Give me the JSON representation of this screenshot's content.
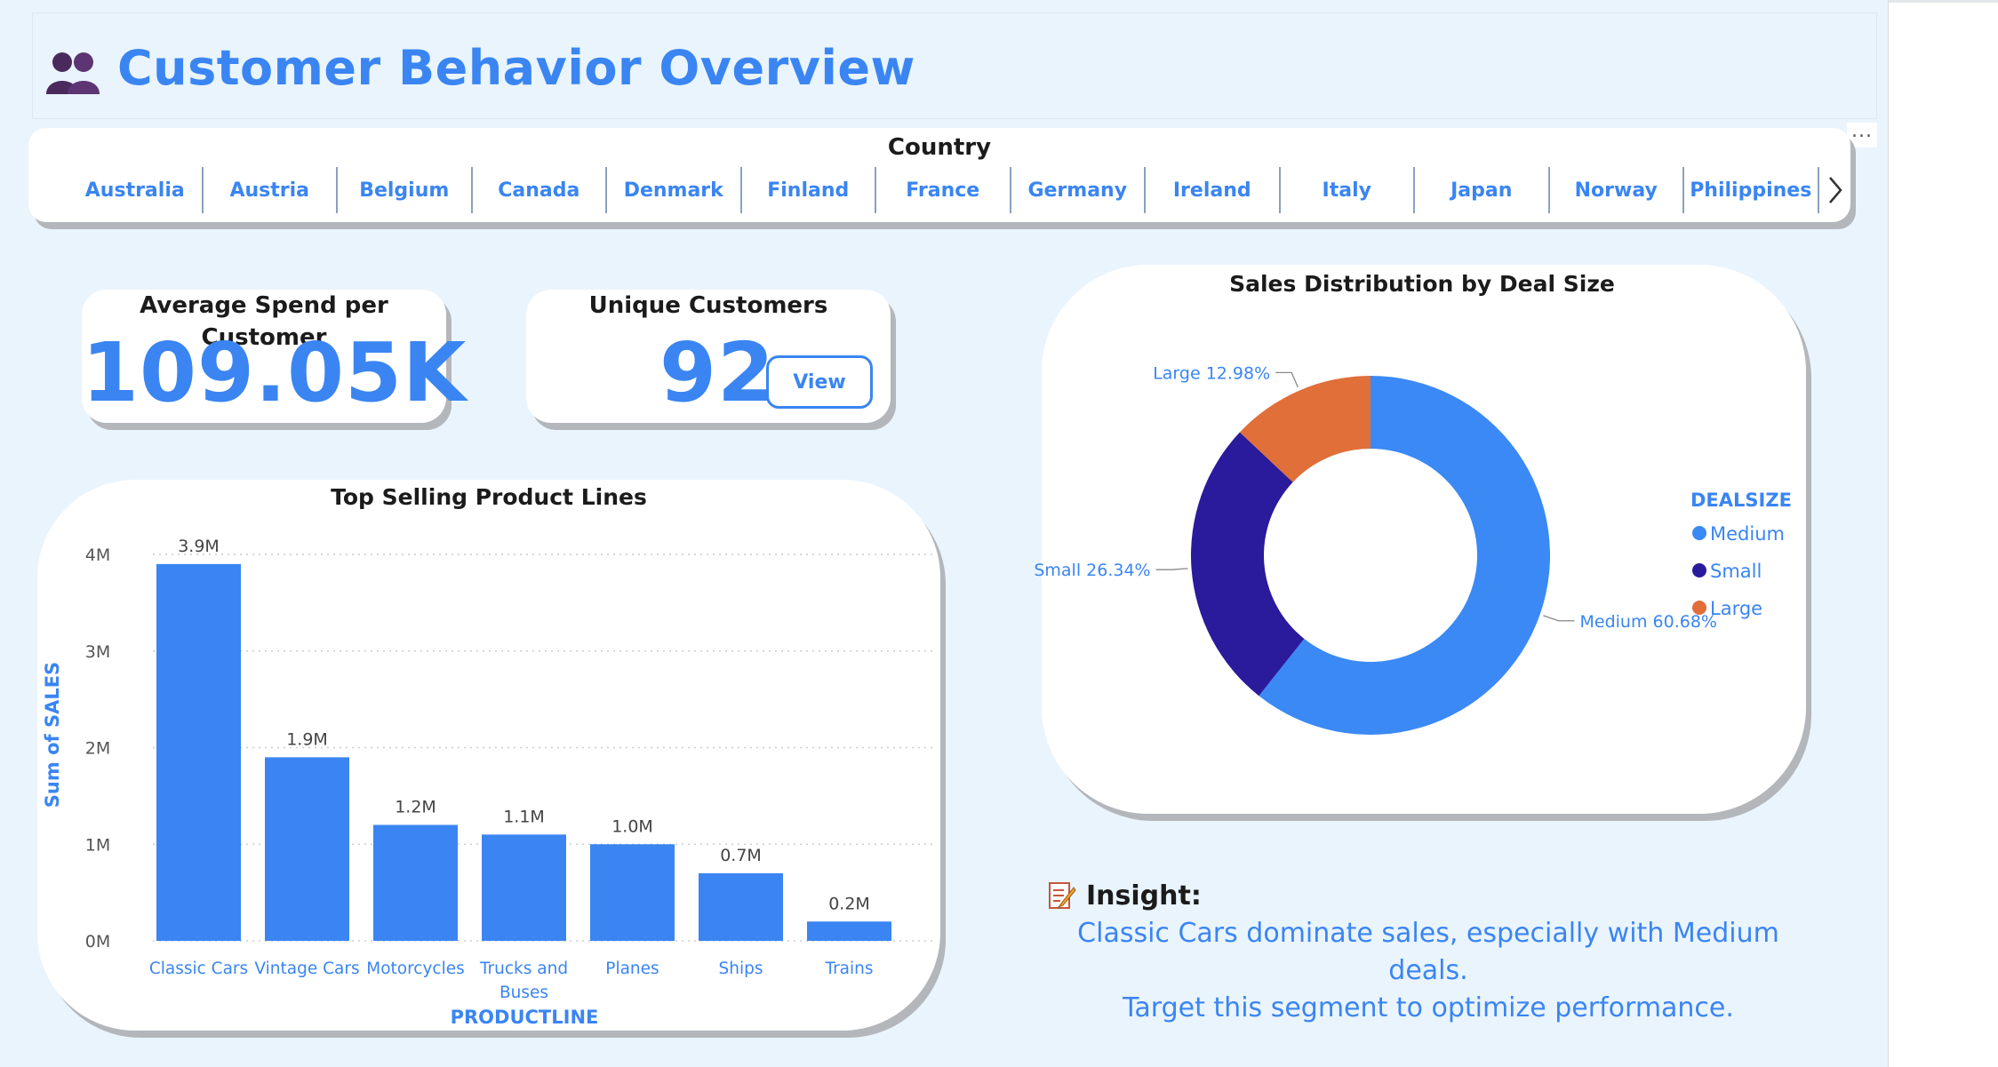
{
  "header": {
    "title": "Customer Behavior Overview",
    "icon": "users-icon"
  },
  "slicer": {
    "title": "Country",
    "items": [
      "Australia",
      "Austria",
      "Belgium",
      "Canada",
      "Denmark",
      "Finland",
      "France",
      "Germany",
      "Ireland",
      "Italy",
      "Japan",
      "Norway",
      "Philippines"
    ],
    "more_label": "..."
  },
  "kpis": {
    "avg_spend": {
      "label": "Average Spend per Customer",
      "value": "109.05K"
    },
    "unique_customers": {
      "label": "Unique Customers",
      "value": "92",
      "button_label": "View"
    }
  },
  "colors": {
    "accent": "#3a85f2",
    "medium": "#3b89f5",
    "small": "#2a1a9c",
    "large": "#e06f3a"
  },
  "chart_data": [
    {
      "type": "bar",
      "title": "Top Selling Product Lines",
      "xlabel": "PRODUCTLINE",
      "ylabel": "Sum of SALES",
      "categories": [
        "Classic Cars",
        "Vintage Cars",
        "Motorcycles",
        "Trucks and Buses",
        "Planes",
        "Ships",
        "Trains"
      ],
      "values": [
        3.9,
        1.9,
        1.2,
        1.1,
        1.0,
        0.7,
        0.2
      ],
      "data_labels": [
        "3.9M",
        "1.9M",
        "1.2M",
        "1.1M",
        "1.0M",
        "0.7M",
        "0.2M"
      ],
      "yticks": [
        "0M",
        "1M",
        "2M",
        "3M",
        "4M"
      ],
      "ylim": [
        0,
        4
      ],
      "grid": true
    },
    {
      "type": "pie",
      "title": "Sales Distribution by Deal Size",
      "legend_title": "DEALSIZE",
      "legend_position": "right",
      "slices": [
        {
          "name": "Medium",
          "value": 60.68,
          "label": "Medium 60.68%"
        },
        {
          "name": "Small",
          "value": 26.34,
          "label": "Small 26.34%"
        },
        {
          "name": "Large",
          "value": 12.98,
          "label": "Large 12.98%"
        }
      ]
    }
  ],
  "insight": {
    "title": "Insight:",
    "lines": [
      "Classic Cars dominate sales, especially with Medium deals.",
      "Target this segment to optimize performance."
    ]
  }
}
